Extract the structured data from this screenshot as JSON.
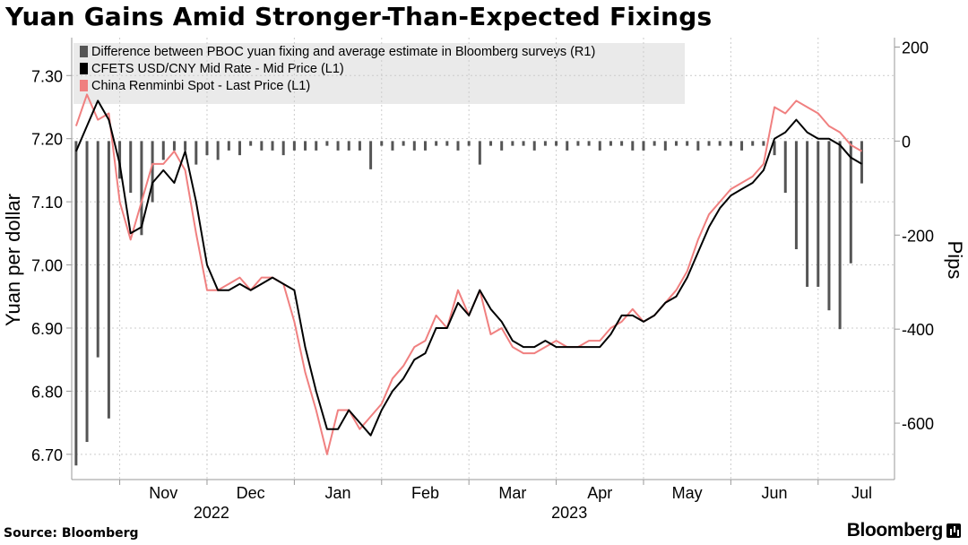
{
  "title": "Yuan Gains Amid Stronger-Than-Expected Fixings",
  "source": "Source: Bloomberg",
  "brand": "Bloomberg",
  "chart_data": {
    "type": "line",
    "left_axis": {
      "label": "Yuan per dollar",
      "ylim": [
        6.66,
        7.36
      ],
      "ticks": [
        "7.30",
        "7.20",
        "7.10",
        "7.00",
        "6.90",
        "6.80",
        "6.70"
      ],
      "tick_values": [
        7.3,
        7.2,
        7.1,
        7.0,
        6.9,
        6.8,
        6.7
      ]
    },
    "right_axis": {
      "label": "Pips",
      "ylim": [
        -720,
        220
      ],
      "ticks": [
        "200",
        "0",
        "-200",
        "-400",
        "-600"
      ],
      "tick_values": [
        200,
        0,
        -200,
        -400,
        -600
      ]
    },
    "x_axis": {
      "months": [
        "Nov",
        "Dec",
        "Jan",
        "Feb",
        "Mar",
        "Apr",
        "May",
        "Jun",
        "Jul"
      ],
      "month_positions": [
        2,
        6,
        10,
        14,
        18,
        22,
        26,
        30,
        34
      ],
      "years": [
        "2022",
        "2023"
      ],
      "year_positions": [
        4.2,
        20.6
      ],
      "range": [
        -2.2,
        35.5
      ]
    },
    "legend": [
      {
        "name": "Difference between PBOC yuan fixing and average estimate in Bloomberg surveys (R1)",
        "color": "#555555"
      },
      {
        "name": "CFETS USD/CNY Mid Rate - Mid Price (L1)",
        "color": "#000000"
      },
      {
        "name": "China Renminbi Spot - Last Price (L1)",
        "color": "#f08080"
      }
    ],
    "series": [
      {
        "name": "China Renminbi Spot - Last Price (L1)",
        "axis": "left",
        "color": "#f08080",
        "x": [
          -2.0,
          -1.5,
          -1.0,
          -0.5,
          0.0,
          0.5,
          1.0,
          1.5,
          2.0,
          2.5,
          3.0,
          3.5,
          4.0,
          4.5,
          5.0,
          5.5,
          6.0,
          6.5,
          7.0,
          7.5,
          8.0,
          8.5,
          9.0,
          9.5,
          10.0,
          10.5,
          11.0,
          11.5,
          12.0,
          12.5,
          13.0,
          13.5,
          14.0,
          14.5,
          15.0,
          15.5,
          16.0,
          16.5,
          17.0,
          17.5,
          18.0,
          18.5,
          19.0,
          19.5,
          20.0,
          20.5,
          21.0,
          21.5,
          22.0,
          22.5,
          23.0,
          23.5,
          24.0,
          24.5,
          25.0,
          25.5,
          26.0,
          26.5,
          27.0,
          27.5,
          28.0,
          28.5,
          29.0,
          29.5,
          30.0,
          30.5,
          31.0,
          31.5,
          32.0,
          32.5,
          33.0,
          33.5,
          34.0
        ],
        "values": [
          7.22,
          7.27,
          7.23,
          7.24,
          7.1,
          7.04,
          7.1,
          7.16,
          7.16,
          7.18,
          7.15,
          7.05,
          6.96,
          6.96,
          6.97,
          6.98,
          6.96,
          6.98,
          6.98,
          6.97,
          6.91,
          6.83,
          6.77,
          6.7,
          6.77,
          6.77,
          6.74,
          6.76,
          6.78,
          6.82,
          6.84,
          6.87,
          6.88,
          6.92,
          6.9,
          6.96,
          6.92,
          6.96,
          6.89,
          6.9,
          6.87,
          6.86,
          6.86,
          6.87,
          6.88,
          6.87,
          6.87,
          6.88,
          6.88,
          6.9,
          6.91,
          6.93,
          6.91,
          6.92,
          6.94,
          6.96,
          6.99,
          7.04,
          7.08,
          7.1,
          7.12,
          7.13,
          7.14,
          7.16,
          7.25,
          7.24,
          7.26,
          7.25,
          7.24,
          7.22,
          7.21,
          7.19,
          7.18
        ]
      },
      {
        "name": "CFETS USD/CNY Mid Rate - Mid Price (L1)",
        "axis": "left",
        "color": "#000000",
        "x": [
          -2.0,
          -1.5,
          -1.0,
          -0.5,
          0.0,
          0.5,
          1.0,
          1.5,
          2.0,
          2.5,
          3.0,
          3.5,
          4.0,
          4.5,
          5.0,
          5.5,
          6.0,
          6.5,
          7.0,
          7.5,
          8.0,
          8.5,
          9.0,
          9.5,
          10.0,
          10.5,
          11.0,
          11.5,
          12.0,
          12.5,
          13.0,
          13.5,
          14.0,
          14.5,
          15.0,
          15.5,
          16.0,
          16.5,
          17.0,
          17.5,
          18.0,
          18.5,
          19.0,
          19.5,
          20.0,
          20.5,
          21.0,
          21.5,
          22.0,
          22.5,
          23.0,
          23.5,
          24.0,
          24.5,
          25.0,
          25.5,
          26.0,
          26.5,
          27.0,
          27.5,
          28.0,
          28.5,
          29.0,
          29.5,
          30.0,
          30.5,
          31.0,
          31.5,
          32.0,
          32.5,
          33.0,
          33.5,
          34.0
        ],
        "values": [
          7.18,
          7.22,
          7.26,
          7.23,
          7.16,
          7.05,
          7.06,
          7.13,
          7.15,
          7.13,
          7.18,
          7.1,
          7.0,
          6.96,
          6.96,
          6.97,
          6.96,
          6.97,
          6.98,
          6.97,
          6.96,
          6.87,
          6.8,
          6.74,
          6.74,
          6.77,
          6.75,
          6.73,
          6.77,
          6.8,
          6.82,
          6.85,
          6.86,
          6.9,
          6.9,
          6.94,
          6.92,
          6.96,
          6.93,
          6.91,
          6.88,
          6.87,
          6.87,
          6.88,
          6.87,
          6.87,
          6.87,
          6.87,
          6.87,
          6.89,
          6.92,
          6.92,
          6.91,
          6.92,
          6.94,
          6.95,
          6.98,
          7.02,
          7.06,
          7.09,
          7.11,
          7.12,
          7.13,
          7.15,
          7.2,
          7.21,
          7.23,
          7.21,
          7.2,
          7.2,
          7.19,
          7.17,
          7.16
        ]
      },
      {
        "name": "Difference between PBOC yuan fixing and average estimate in Bloomberg surveys (R1)",
        "axis": "right",
        "color": "#555555",
        "chart_kind": "bar",
        "x": [
          -2.0,
          -1.5,
          -1.0,
          -0.5,
          0.0,
          0.5,
          1.0,
          1.5,
          2.0,
          2.5,
          3.0,
          3.5,
          4.0,
          4.5,
          5.0,
          5.5,
          6.0,
          6.5,
          7.0,
          7.5,
          8.0,
          8.5,
          9.0,
          9.5,
          10.0,
          10.5,
          11.0,
          11.5,
          12.0,
          12.5,
          13.0,
          13.5,
          14.0,
          14.5,
          15.0,
          15.5,
          16.0,
          16.5,
          17.0,
          17.5,
          18.0,
          18.5,
          19.0,
          19.5,
          20.0,
          20.5,
          21.0,
          21.5,
          22.0,
          22.5,
          23.0,
          23.5,
          24.0,
          24.5,
          25.0,
          25.5,
          26.0,
          26.5,
          27.0,
          27.5,
          28.0,
          28.5,
          29.0,
          29.5,
          30.0,
          30.5,
          31.0,
          31.5,
          32.0,
          32.5,
          33.0,
          33.5,
          34.0
        ],
        "values": [
          -690,
          -640,
          -460,
          -590,
          -80,
          -110,
          -200,
          -130,
          -40,
          -20,
          -20,
          -50,
          -30,
          -40,
          -20,
          -30,
          -10,
          -20,
          -20,
          -30,
          -20,
          -20,
          -20,
          -10,
          -20,
          -20,
          -20,
          -60,
          -10,
          -20,
          -10,
          -20,
          -20,
          -10,
          -10,
          -20,
          -10,
          -50,
          -10,
          -20,
          -10,
          -10,
          -20,
          -10,
          -10,
          -20,
          -10,
          -10,
          -20,
          -10,
          -10,
          -20,
          -20,
          -10,
          -20,
          -10,
          -10,
          -20,
          -10,
          -10,
          -10,
          -20,
          -10,
          -10,
          -30,
          -110,
          -230,
          -310,
          -310,
          -360,
          -400,
          -260,
          -90
        ]
      }
    ]
  }
}
